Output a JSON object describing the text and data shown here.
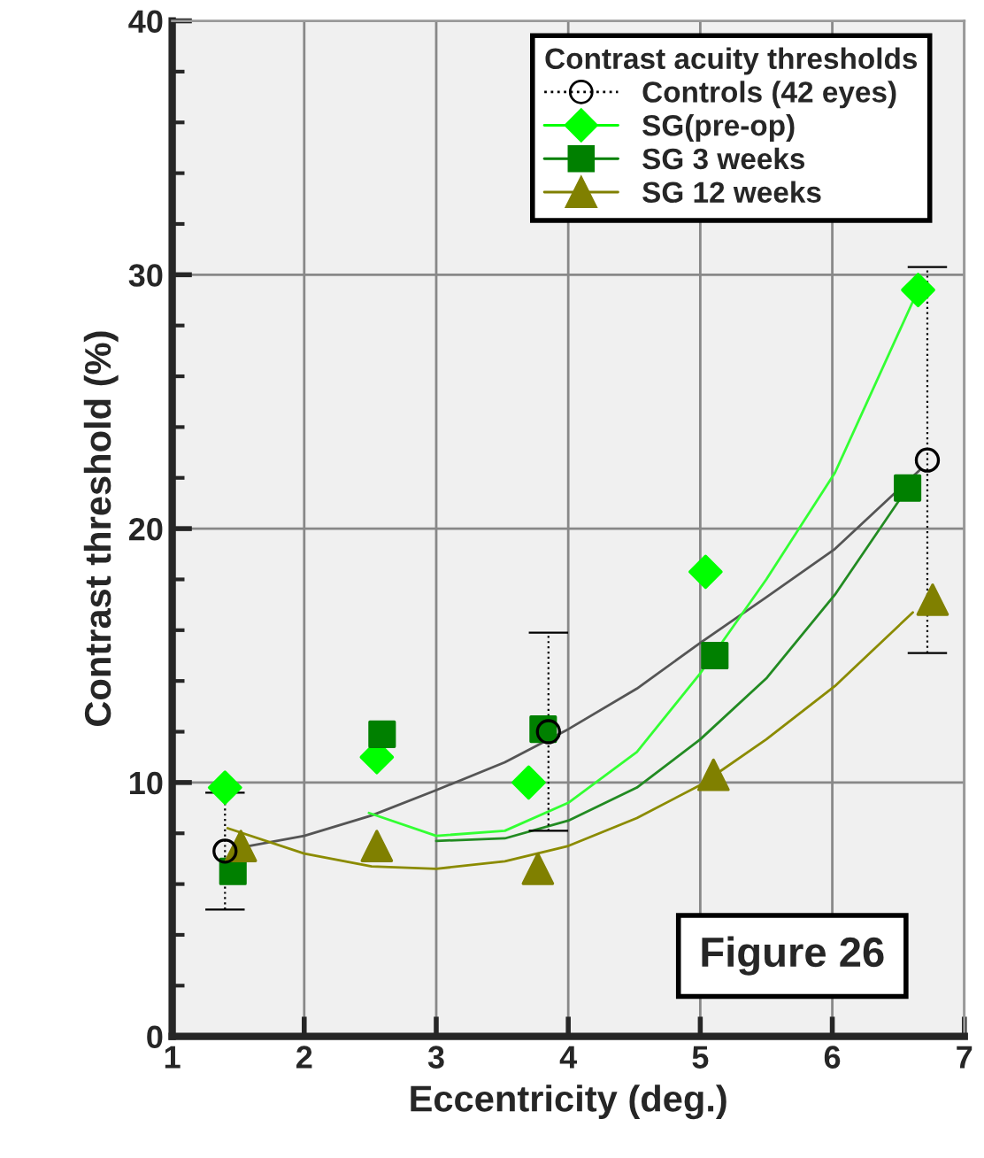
{
  "chart_data": {
    "type": "scatter",
    "xlabel": "Eccentricity (deg.)",
    "ylabel": "Contrast threshold (%)",
    "legend_title": "Contrast acuity thresholds",
    "xlim": [
      1,
      7
    ],
    "ylim": [
      0,
      40
    ],
    "xticks": [
      1,
      2,
      3,
      4,
      5,
      6,
      7
    ],
    "yticks": [
      0,
      10,
      20,
      30,
      40
    ],
    "grid": true,
    "legend": "top right",
    "annotations": [
      "Figure 26"
    ],
    "series": [
      {
        "name": "Controls (42 eyes)",
        "marker": "circle",
        "line_style": "dotted",
        "color": "#000000",
        "x": [
          1.4,
          3.85,
          6.72
        ],
        "values": [
          7.3,
          12.0,
          22.7
        ],
        "errors": [
          2.3,
          3.9,
          7.6
        ]
      },
      {
        "name": "SG(pre-op)",
        "marker": "diamond",
        "line_style": "solid",
        "color": "#00ff00",
        "x": [
          1.4,
          2.55,
          3.7,
          5.04,
          6.65
        ],
        "values": [
          9.8,
          11.0,
          10.0,
          18.3,
          29.4
        ]
      },
      {
        "name": "SG 3 weeks",
        "marker": "square",
        "line_style": "solid",
        "color": "#008000",
        "x": [
          1.46,
          2.59,
          3.81,
          5.11,
          6.57
        ],
        "values": [
          6.5,
          11.9,
          12.1,
          15.0,
          21.6
        ]
      },
      {
        "name": "SG 12 weeks",
        "marker": "triangle",
        "line_style": "solid",
        "color": "#808000",
        "x": [
          1.52,
          2.55,
          3.77,
          5.1,
          6.76
        ],
        "values": [
          7.5,
          7.5,
          6.6,
          10.3,
          17.2
        ]
      },
      {
        "type": "line",
        "color": "#555555",
        "x": [
          1.48,
          2.0,
          2.51,
          3.0,
          3.52,
          4.0,
          4.52,
          5.0,
          5.5,
          6.02,
          6.66
        ],
        "values": [
          7.4,
          7.9,
          8.7,
          9.7,
          10.8,
          12.1,
          13.7,
          15.5,
          17.3,
          19.2,
          22.3
        ]
      },
      {
        "type": "line",
        "color": "#33ff33",
        "x": [
          2.49,
          3.0,
          3.52,
          4.0,
          4.52,
          5.0,
          5.5,
          6.02,
          6.65
        ],
        "values": [
          8.8,
          7.9,
          8.1,
          9.2,
          11.2,
          14.3,
          18.0,
          22.2,
          29.4
        ]
      },
      {
        "type": "line",
        "color": "#228b22",
        "x": [
          3.0,
          3.52,
          4.0,
          4.52,
          5.0,
          5.5,
          6.02,
          6.57
        ],
        "values": [
          7.7,
          7.8,
          8.5,
          9.8,
          11.7,
          14.1,
          17.4,
          21.6
        ]
      },
      {
        "type": "line",
        "color": "#8b8b00",
        "x": [
          1.42,
          2.0,
          2.51,
          3.0,
          3.52,
          4.0,
          4.52,
          5.0,
          5.5,
          6.02,
          6.61
        ],
        "values": [
          8.2,
          7.2,
          6.7,
          6.6,
          6.9,
          7.5,
          8.6,
          9.9,
          11.7,
          13.8,
          16.7
        ]
      }
    ]
  }
}
